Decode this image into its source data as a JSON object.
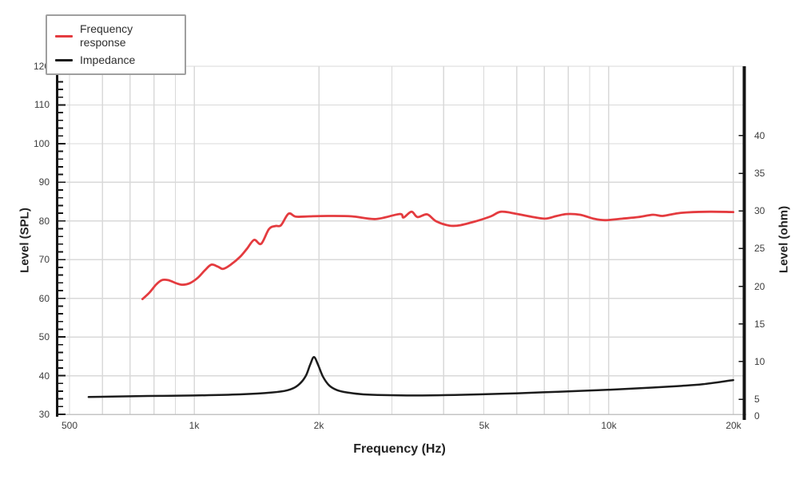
{
  "chart_data": {
    "type": "line",
    "title": "",
    "xlabel": "Frequency (Hz)",
    "ylabel_left": "Level (SPL)",
    "ylabel_right": "Level (ohm)",
    "grid": true,
    "legend_position": "top-left",
    "x_axis": {
      "scale": "log",
      "range": [
        467,
        21430
      ],
      "ticks": [
        {
          "value": 500,
          "label": "500"
        },
        {
          "value": 1000,
          "label": "1k"
        },
        {
          "value": 2000,
          "label": "2k"
        },
        {
          "value": 5000,
          "label": "5k"
        },
        {
          "value": 10000,
          "label": "10k"
        },
        {
          "value": 20000,
          "label": "20k"
        }
      ],
      "minor_gridlines": [
        600,
        700,
        800,
        900,
        3000,
        4000,
        6000,
        7000,
        8000,
        9000
      ]
    },
    "y_axis_left": {
      "label": "Level (SPL)",
      "unit": "dB SPL",
      "range": [
        30,
        120
      ],
      "tick_step": 10,
      "minor_tick_step": 2,
      "tick_labels": [
        "30",
        "40",
        "50",
        "60",
        "70",
        "80",
        "90",
        "100",
        "110",
        "120"
      ]
    },
    "y_axis_right": {
      "label": "Level (ohm)",
      "unit": "ohm",
      "range": [
        3,
        49.2
      ],
      "ticks": [
        0,
        5,
        10,
        15,
        20,
        25,
        30,
        35,
        40
      ]
    },
    "series": [
      {
        "name": "Frequency response",
        "color": "#e43b3f",
        "y_axis": "left",
        "points": [
          [
            750,
            59.8
          ],
          [
            780,
            61.5
          ],
          [
            810,
            63.6
          ],
          [
            835,
            64.7
          ],
          [
            865,
            64.7
          ],
          [
            905,
            63.9
          ],
          [
            935,
            63.5
          ],
          [
            975,
            63.9
          ],
          [
            1020,
            65.3
          ],
          [
            1060,
            67.2
          ],
          [
            1100,
            68.7
          ],
          [
            1140,
            68.2
          ],
          [
            1175,
            67.6
          ],
          [
            1225,
            68.7
          ],
          [
            1290,
            70.7
          ],
          [
            1340,
            72.8
          ],
          [
            1395,
            75.1
          ],
          [
            1450,
            74.1
          ],
          [
            1515,
            77.9
          ],
          [
            1570,
            78.7
          ],
          [
            1620,
            78.9
          ],
          [
            1690,
            81.9
          ],
          [
            1760,
            81.1
          ],
          [
            1900,
            81.2
          ],
          [
            2100,
            81.3
          ],
          [
            2400,
            81.2
          ],
          [
            2740,
            80.5
          ],
          [
            3130,
            81.8
          ],
          [
            3200,
            80.9
          ],
          [
            3345,
            82.4
          ],
          [
            3460,
            81.0
          ],
          [
            3650,
            81.7
          ],
          [
            3840,
            79.9
          ],
          [
            4130,
            78.8
          ],
          [
            4390,
            78.9
          ],
          [
            4810,
            80.0
          ],
          [
            5200,
            81.2
          ],
          [
            5500,
            82.4
          ],
          [
            5960,
            81.9
          ],
          [
            6500,
            81.1
          ],
          [
            7030,
            80.6
          ],
          [
            7500,
            81.3
          ],
          [
            7940,
            81.8
          ],
          [
            8540,
            81.6
          ],
          [
            9200,
            80.6
          ],
          [
            9810,
            80.2
          ],
          [
            10800,
            80.6
          ],
          [
            11800,
            81.0
          ],
          [
            12790,
            81.6
          ],
          [
            13500,
            81.3
          ],
          [
            14500,
            81.9
          ],
          [
            15420,
            82.2
          ],
          [
            17570,
            82.4
          ],
          [
            20000,
            82.3
          ]
        ]
      },
      {
        "name": "Impedance",
        "color": "#1c1c1c",
        "y_axis": "right",
        "points": [
          [
            556,
            5.3
          ],
          [
            700,
            5.4
          ],
          [
            826,
            5.45
          ],
          [
            1000,
            5.5
          ],
          [
            1288,
            5.65
          ],
          [
            1540,
            5.9
          ],
          [
            1680,
            6.2
          ],
          [
            1775,
            6.8
          ],
          [
            1855,
            8.0
          ],
          [
            1905,
            9.6
          ],
          [
            1945,
            10.6
          ],
          [
            1990,
            9.6
          ],
          [
            2045,
            8.0
          ],
          [
            2120,
            6.8
          ],
          [
            2215,
            6.2
          ],
          [
            2340,
            5.9
          ],
          [
            2560,
            5.65
          ],
          [
            2870,
            5.55
          ],
          [
            3420,
            5.5
          ],
          [
            4070,
            5.55
          ],
          [
            4870,
            5.65
          ],
          [
            6050,
            5.8
          ],
          [
            7560,
            6.0
          ],
          [
            9440,
            6.2
          ],
          [
            11800,
            6.45
          ],
          [
            14730,
            6.75
          ],
          [
            16900,
            7.0
          ],
          [
            20000,
            7.55
          ]
        ]
      }
    ]
  },
  "colors": {
    "background": "#ffffff",
    "grid": "#d9d9d9",
    "axis_spine": "#141414",
    "bottom_axis": "#c4c4c4",
    "tick_text": "#3d3d3d",
    "title_text": "#222222",
    "legend_border": "#9f9f9f"
  }
}
